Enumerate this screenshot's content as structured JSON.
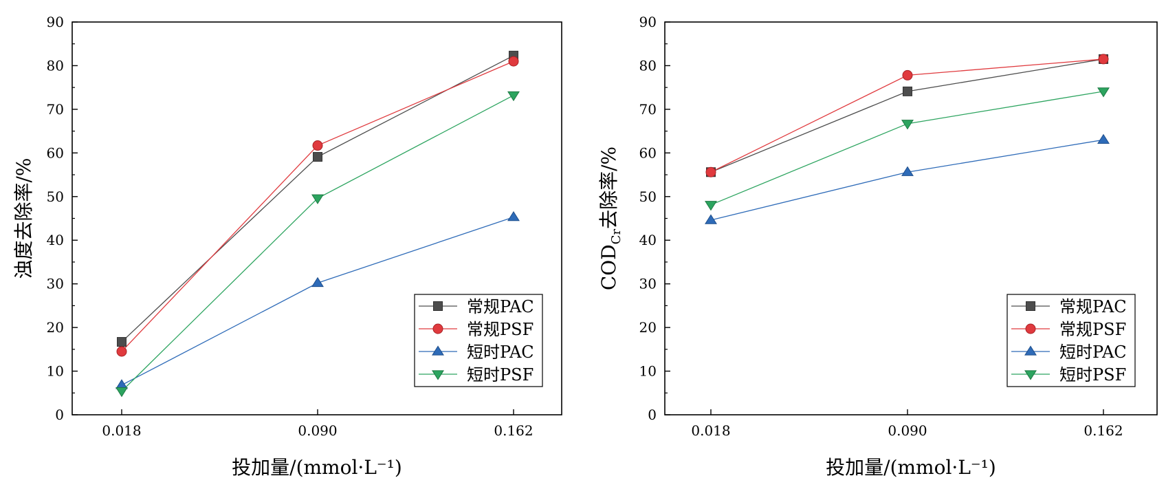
{
  "figure": {
    "panels": [
      {
        "ylabel": "浊度去除率/%",
        "xlabel": "投加量/(mmol·L⁻¹)"
      },
      {
        "ylabel_main": "COD",
        "ylabel_sub": "Cr",
        "ylabel_rest": "去除率/%",
        "xlabel": "投加量/(mmol·L⁻¹)"
      }
    ]
  },
  "chart_data": [
    {
      "type": "line",
      "categories": [
        "0.018",
        "0.090",
        "0.162"
      ],
      "ylim": [
        0,
        90
      ],
      "yticks": [
        0,
        10,
        20,
        30,
        40,
        50,
        60,
        70,
        80,
        90
      ],
      "xlabel": "投加量/(mmol·L⁻¹)",
      "ylabel": "浊度去除率/%",
      "legend": "bottom-right",
      "series": [
        {
          "name": "常规PAC",
          "values": [
            16.7,
            59.1,
            82.3
          ],
          "color": "#4d4d4d",
          "marker": "square"
        },
        {
          "name": "常规PSF",
          "values": [
            14.5,
            61.7,
            81.0
          ],
          "color": "#e03a3e",
          "marker": "circle"
        },
        {
          "name": "短时PAC",
          "values": [
            6.8,
            30.2,
            45.3
          ],
          "color": "#2e6bb8",
          "marker": "triangle-up"
        },
        {
          "name": "短时PSF",
          "values": [
            5.4,
            49.6,
            73.2
          ],
          "color": "#2ca45f",
          "marker": "triangle-down"
        }
      ]
    },
    {
      "type": "line",
      "categories": [
        "0.018",
        "0.090",
        "0.162"
      ],
      "ylim": [
        0,
        90
      ],
      "yticks": [
        0,
        10,
        20,
        30,
        40,
        50,
        60,
        70,
        80,
        90
      ],
      "xlabel": "投加量/(mmol·L⁻¹)",
      "ylabel": "COD_Cr去除率/%",
      "legend": "bottom-right",
      "series": [
        {
          "name": "常规PAC",
          "values": [
            55.6,
            74.1,
            81.5
          ],
          "color": "#4d4d4d",
          "marker": "square"
        },
        {
          "name": "常规PSF",
          "values": [
            55.6,
            77.8,
            81.5
          ],
          "color": "#e03a3e",
          "marker": "circle"
        },
        {
          "name": "短时PAC",
          "values": [
            44.6,
            55.6,
            63.0
          ],
          "color": "#2e6bb8",
          "marker": "triangle-up"
        },
        {
          "name": "短时PSF",
          "values": [
            48.1,
            66.7,
            74.1
          ],
          "color": "#2ca45f",
          "marker": "triangle-down"
        }
      ]
    }
  ]
}
